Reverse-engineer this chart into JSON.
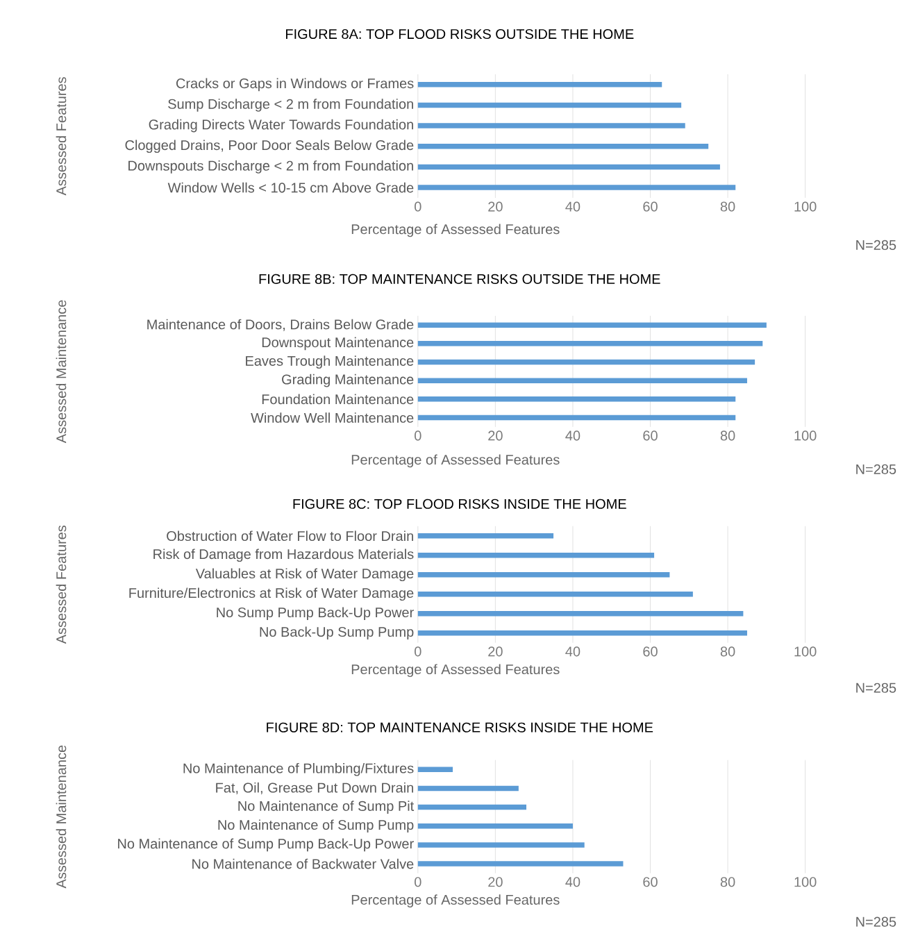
{
  "chart_data": [
    {
      "type": "bar",
      "orientation": "horizontal",
      "title": "FIGURE 8A: TOP FLOOD RISKS OUTSIDE THE HOME",
      "xlabel": "Percentage of Assessed Features",
      "ylabel": "Assessed Features",
      "categories": [
        "Cracks or Gaps in Windows or Frames",
        "Sump Discharge < 2 m from Foundation",
        "Grading Directs Water Towards Foundation",
        "Clogged Drains, Poor Door Seals Below Grade",
        "Downspouts Discharge < 2 m  from Foundation",
        "Window Wells < 10-15 cm Above Grade"
      ],
      "values": [
        63,
        68,
        69,
        75,
        78,
        82
      ],
      "color": "#5b9bd5",
      "xlim": [
        0,
        100
      ],
      "xticks": [
        0,
        20,
        40,
        60,
        80,
        100
      ],
      "grid": "x",
      "annotations": [
        "N=285"
      ]
    },
    {
      "type": "bar",
      "orientation": "horizontal",
      "title": "FIGURE 8B: TOP MAINTENANCE RISKS OUTSIDE THE HOME",
      "xlabel": "Percentage of Assessed Features",
      "ylabel": "Assessed Maintenance",
      "categories": [
        "Maintenance of Doors, Drains Below Grade",
        "Downspout Maintenance",
        "Eaves Trough Maintenance",
        "Grading Maintenance",
        "Foundation Maintenance",
        "Window Well Maintenance"
      ],
      "values": [
        90,
        89,
        87,
        85,
        82,
        82
      ],
      "color": "#5b9bd5",
      "xlim": [
        0,
        100
      ],
      "xticks": [
        0,
        20,
        40,
        60,
        80,
        100
      ],
      "grid": "x",
      "annotations": [
        "N=285"
      ]
    },
    {
      "type": "bar",
      "orientation": "horizontal",
      "title": "FIGURE 8C: TOP FLOOD RISKS INSIDE THE HOME",
      "xlabel": "Percentage of Assessed Features",
      "ylabel": "Assessed Features",
      "categories": [
        "Obstruction of Water Flow to Floor Drain",
        "Risk of Damage from Hazardous Materials",
        "Valuables at Risk of Water Damage",
        "Furniture/Electronics at Risk of Water Damage",
        "No Sump Pump Back-Up Power",
        "No Back-Up Sump Pump"
      ],
      "values": [
        35,
        61,
        65,
        71,
        84,
        85
      ],
      "color": "#5b9bd5",
      "xlim": [
        0,
        100
      ],
      "xticks": [
        0,
        20,
        40,
        60,
        80,
        100
      ],
      "grid": "x",
      "annotations": [
        "N=285"
      ]
    },
    {
      "type": "bar",
      "orientation": "horizontal",
      "title": "FIGURE 8D: TOP MAINTENANCE RISKS INSIDE THE HOME",
      "xlabel": "Percentage of Assessed Features",
      "ylabel": "Assessed Maintenance",
      "categories": [
        "No Maintenance of Plumbing/Fixtures",
        "Fat, Oil, Grease Put Down Drain",
        "No Maintenance of Sump Pit",
        "No Maintenance of Sump Pump",
        "No Maintenance of Sump Pump Back-Up Power",
        "No Maintenance of Backwater Valve"
      ],
      "values": [
        9,
        26,
        28,
        40,
        43,
        53
      ],
      "color": "#5b9bd5",
      "xlim": [
        0,
        100
      ],
      "xticks": [
        0,
        20,
        40,
        60,
        80,
        100
      ],
      "grid": "x",
      "annotations": [
        "N=285"
      ]
    }
  ]
}
